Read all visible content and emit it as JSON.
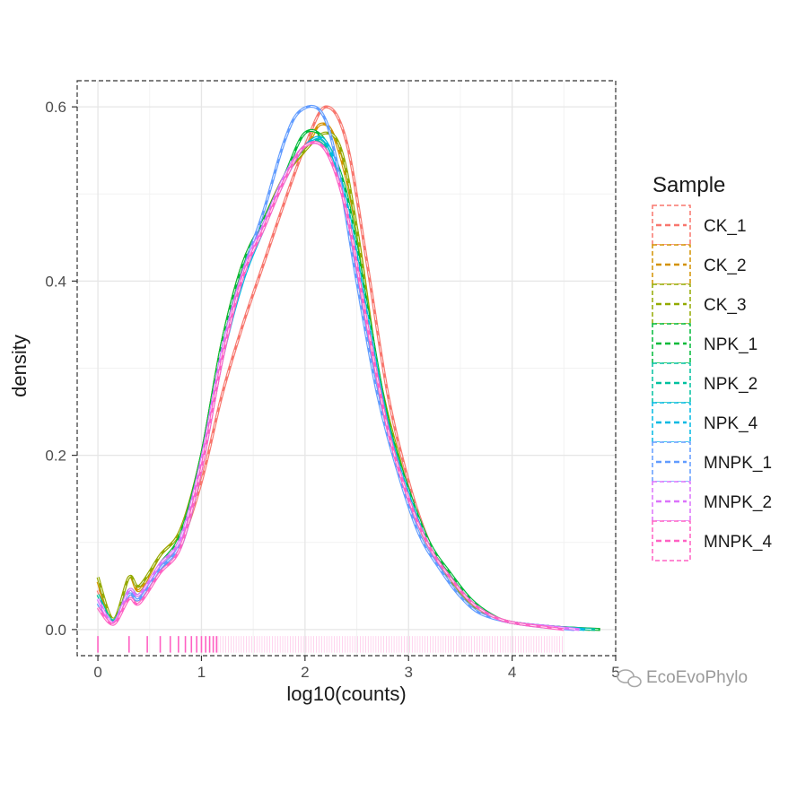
{
  "chart_data": {
    "type": "line",
    "xlabel": "log10(counts)",
    "ylabel": "density",
    "xlim": [
      -0.2,
      5.0
    ],
    "ylim": [
      -0.03,
      0.63
    ],
    "x_ticks": [
      0,
      1,
      2,
      3,
      4,
      5
    ],
    "y_ticks": [
      0.0,
      0.2,
      0.4,
      0.6
    ],
    "grid": true,
    "line_style": "dashed",
    "rug": true,
    "legend": {
      "title": "Sample",
      "position": "right"
    },
    "series": [
      {
        "name": "CK_1",
        "color": "#F8766D",
        "max_x": 4.85,
        "points": [
          [
            0,
            0.045
          ],
          [
            0.15,
            0.01
          ],
          [
            0.3,
            0.04
          ],
          [
            0.4,
            0.035
          ],
          [
            0.6,
            0.075
          ],
          [
            0.8,
            0.1
          ],
          [
            1.0,
            0.17
          ],
          [
            1.2,
            0.27
          ],
          [
            1.4,
            0.35
          ],
          [
            1.6,
            0.42
          ],
          [
            1.8,
            0.49
          ],
          [
            2.0,
            0.555
          ],
          [
            2.2,
            0.6
          ],
          [
            2.4,
            0.56
          ],
          [
            2.6,
            0.42
          ],
          [
            2.8,
            0.27
          ],
          [
            3.0,
            0.17
          ],
          [
            3.2,
            0.1
          ],
          [
            3.4,
            0.06
          ],
          [
            3.6,
            0.03
          ],
          [
            3.8,
            0.015
          ],
          [
            4.0,
            0.008
          ],
          [
            4.4,
            0.003
          ],
          [
            4.85,
            0.0
          ]
        ]
      },
      {
        "name": "CK_2",
        "color": "#D39200",
        "max_x": 4.75,
        "points": [
          [
            0,
            0.055
          ],
          [
            0.15,
            0.01
          ],
          [
            0.3,
            0.06
          ],
          [
            0.4,
            0.045
          ],
          [
            0.6,
            0.085
          ],
          [
            0.8,
            0.115
          ],
          [
            1.0,
            0.2
          ],
          [
            1.2,
            0.33
          ],
          [
            1.4,
            0.42
          ],
          [
            1.6,
            0.47
          ],
          [
            1.8,
            0.52
          ],
          [
            2.0,
            0.55
          ],
          [
            2.15,
            0.58
          ],
          [
            2.3,
            0.56
          ],
          [
            2.5,
            0.46
          ],
          [
            2.7,
            0.3
          ],
          [
            2.9,
            0.2
          ],
          [
            3.1,
            0.12
          ],
          [
            3.3,
            0.075
          ],
          [
            3.5,
            0.04
          ],
          [
            3.7,
            0.02
          ],
          [
            4.0,
            0.008
          ],
          [
            4.4,
            0.003
          ],
          [
            4.75,
            0.0
          ]
        ]
      },
      {
        "name": "CK_3",
        "color": "#93AA00",
        "max_x": 4.8,
        "points": [
          [
            0,
            0.06
          ],
          [
            0.15,
            0.012
          ],
          [
            0.3,
            0.06
          ],
          [
            0.4,
            0.05
          ],
          [
            0.6,
            0.085
          ],
          [
            0.8,
            0.115
          ],
          [
            1.0,
            0.2
          ],
          [
            1.2,
            0.33
          ],
          [
            1.4,
            0.42
          ],
          [
            1.6,
            0.47
          ],
          [
            1.8,
            0.52
          ],
          [
            2.0,
            0.55
          ],
          [
            2.2,
            0.57
          ],
          [
            2.35,
            0.55
          ],
          [
            2.5,
            0.46
          ],
          [
            2.7,
            0.3
          ],
          [
            2.9,
            0.2
          ],
          [
            3.1,
            0.12
          ],
          [
            3.3,
            0.075
          ],
          [
            3.5,
            0.04
          ],
          [
            3.7,
            0.02
          ],
          [
            4.0,
            0.008
          ],
          [
            4.4,
            0.003
          ],
          [
            4.8,
            0.0
          ]
        ]
      },
      {
        "name": "NPK_1",
        "color": "#00BA38",
        "max_x": 4.85,
        "points": [
          [
            0,
            0.04
          ],
          [
            0.15,
            0.01
          ],
          [
            0.3,
            0.045
          ],
          [
            0.4,
            0.04
          ],
          [
            0.6,
            0.075
          ],
          [
            0.8,
            0.11
          ],
          [
            1.0,
            0.2
          ],
          [
            1.2,
            0.33
          ],
          [
            1.4,
            0.42
          ],
          [
            1.6,
            0.47
          ],
          [
            1.8,
            0.52
          ],
          [
            2.0,
            0.57
          ],
          [
            2.2,
            0.56
          ],
          [
            2.4,
            0.5
          ],
          [
            2.6,
            0.37
          ],
          [
            2.8,
            0.24
          ],
          [
            3.0,
            0.16
          ],
          [
            3.2,
            0.1
          ],
          [
            3.4,
            0.065
          ],
          [
            3.6,
            0.035
          ],
          [
            3.8,
            0.017
          ],
          [
            4.0,
            0.008
          ],
          [
            4.4,
            0.003
          ],
          [
            4.85,
            0.0
          ]
        ]
      },
      {
        "name": "NPK_2",
        "color": "#00C19F",
        "max_x": 4.8,
        "points": [
          [
            0,
            0.04
          ],
          [
            0.15,
            0.01
          ],
          [
            0.3,
            0.045
          ],
          [
            0.4,
            0.04
          ],
          [
            0.6,
            0.07
          ],
          [
            0.8,
            0.1
          ],
          [
            1.0,
            0.19
          ],
          [
            1.2,
            0.32
          ],
          [
            1.4,
            0.41
          ],
          [
            1.6,
            0.465
          ],
          [
            1.8,
            0.52
          ],
          [
            2.0,
            0.555
          ],
          [
            2.2,
            0.555
          ],
          [
            2.4,
            0.48
          ],
          [
            2.6,
            0.35
          ],
          [
            2.8,
            0.23
          ],
          [
            3.0,
            0.15
          ],
          [
            3.2,
            0.095
          ],
          [
            3.4,
            0.06
          ],
          [
            3.6,
            0.032
          ],
          [
            3.8,
            0.016
          ],
          [
            4.0,
            0.008
          ],
          [
            4.4,
            0.003
          ],
          [
            4.8,
            0.0
          ]
        ]
      },
      {
        "name": "NPK_4",
        "color": "#00B9E3",
        "max_x": 4.7,
        "points": [
          [
            0,
            0.03
          ],
          [
            0.15,
            0.008
          ],
          [
            0.3,
            0.04
          ],
          [
            0.4,
            0.035
          ],
          [
            0.6,
            0.07
          ],
          [
            0.8,
            0.095
          ],
          [
            1.0,
            0.185
          ],
          [
            1.2,
            0.31
          ],
          [
            1.4,
            0.4
          ],
          [
            1.6,
            0.46
          ],
          [
            1.8,
            0.515
          ],
          [
            2.0,
            0.555
          ],
          [
            2.2,
            0.56
          ],
          [
            2.4,
            0.49
          ],
          [
            2.6,
            0.36
          ],
          [
            2.8,
            0.235
          ],
          [
            3.0,
            0.155
          ],
          [
            3.2,
            0.095
          ],
          [
            3.4,
            0.06
          ],
          [
            3.6,
            0.032
          ],
          [
            3.8,
            0.016
          ],
          [
            4.0,
            0.008
          ],
          [
            4.4,
            0.003
          ],
          [
            4.7,
            0.0
          ]
        ]
      },
      {
        "name": "MNPK_1",
        "color": "#619CFF",
        "max_x": 4.6,
        "points": [
          [
            0,
            0.03
          ],
          [
            0.15,
            0.008
          ],
          [
            0.3,
            0.04
          ],
          [
            0.4,
            0.035
          ],
          [
            0.6,
            0.07
          ],
          [
            0.8,
            0.1
          ],
          [
            1.0,
            0.19
          ],
          [
            1.2,
            0.32
          ],
          [
            1.4,
            0.41
          ],
          [
            1.6,
            0.48
          ],
          [
            1.8,
            0.56
          ],
          [
            1.95,
            0.595
          ],
          [
            2.15,
            0.595
          ],
          [
            2.3,
            0.54
          ],
          [
            2.5,
            0.4
          ],
          [
            2.7,
            0.27
          ],
          [
            2.9,
            0.18
          ],
          [
            3.1,
            0.11
          ],
          [
            3.3,
            0.07
          ],
          [
            3.5,
            0.038
          ],
          [
            3.7,
            0.018
          ],
          [
            4.0,
            0.008
          ],
          [
            4.3,
            0.003
          ],
          [
            4.6,
            0.0
          ]
        ]
      },
      {
        "name": "MNPK_2",
        "color": "#DB72FB",
        "max_x": 4.65,
        "points": [
          [
            0,
            0.035
          ],
          [
            0.15,
            0.008
          ],
          [
            0.3,
            0.045
          ],
          [
            0.4,
            0.04
          ],
          [
            0.6,
            0.075
          ],
          [
            0.8,
            0.105
          ],
          [
            1.0,
            0.195
          ],
          [
            1.2,
            0.32
          ],
          [
            1.4,
            0.41
          ],
          [
            1.6,
            0.465
          ],
          [
            1.8,
            0.52
          ],
          [
            2.0,
            0.555
          ],
          [
            2.2,
            0.55
          ],
          [
            2.4,
            0.48
          ],
          [
            2.6,
            0.35
          ],
          [
            2.8,
            0.23
          ],
          [
            3.0,
            0.15
          ],
          [
            3.2,
            0.095
          ],
          [
            3.4,
            0.06
          ],
          [
            3.6,
            0.032
          ],
          [
            3.8,
            0.016
          ],
          [
            4.0,
            0.008
          ],
          [
            4.4,
            0.003
          ],
          [
            4.65,
            0.0
          ]
        ]
      },
      {
        "name": "MNPK_4",
        "color": "#FF61C3",
        "max_x": 4.5,
        "points": [
          [
            0,
            0.025
          ],
          [
            0.15,
            0.006
          ],
          [
            0.3,
            0.035
          ],
          [
            0.4,
            0.03
          ],
          [
            0.6,
            0.065
          ],
          [
            0.8,
            0.095
          ],
          [
            1.0,
            0.185
          ],
          [
            1.2,
            0.31
          ],
          [
            1.4,
            0.405
          ],
          [
            1.6,
            0.46
          ],
          [
            1.8,
            0.515
          ],
          [
            2.0,
            0.555
          ],
          [
            2.2,
            0.55
          ],
          [
            2.4,
            0.48
          ],
          [
            2.6,
            0.35
          ],
          [
            2.8,
            0.23
          ],
          [
            3.0,
            0.15
          ],
          [
            3.2,
            0.095
          ],
          [
            3.4,
            0.06
          ],
          [
            3.6,
            0.032
          ],
          [
            3.8,
            0.016
          ],
          [
            4.0,
            0.008
          ],
          [
            4.3,
            0.003
          ],
          [
            4.5,
            0.0
          ]
        ]
      }
    ],
    "rug_x": [
      0,
      0.301,
      0.477,
      0.602,
      0.699,
      0.778,
      0.845,
      0.903,
      0.954,
      1.0,
      1.041,
      1.079,
      1.114,
      1.146
    ]
  },
  "watermark": "EcoEvoPhylo"
}
